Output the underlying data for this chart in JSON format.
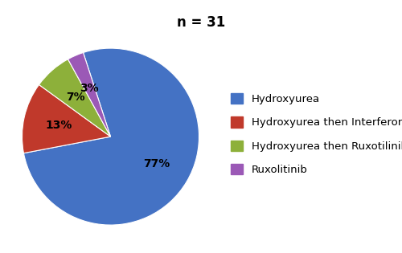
{
  "title": "n = 31",
  "labels": [
    "Hydroxyurea",
    "Hydroxyurea then Interferon",
    "Hydroxyurea then Ruxotilinib",
    "Ruxolitinib"
  ],
  "values": [
    77,
    13,
    7,
    3
  ],
  "colors": [
    "#4472C4",
    "#C0392B",
    "#8DB03A",
    "#9B59B6"
  ],
  "pct_labels": [
    "77%",
    "13%",
    "7%",
    "3%"
  ],
  "startangle": 108,
  "title_fontsize": 12,
  "legend_fontsize": 9.5
}
